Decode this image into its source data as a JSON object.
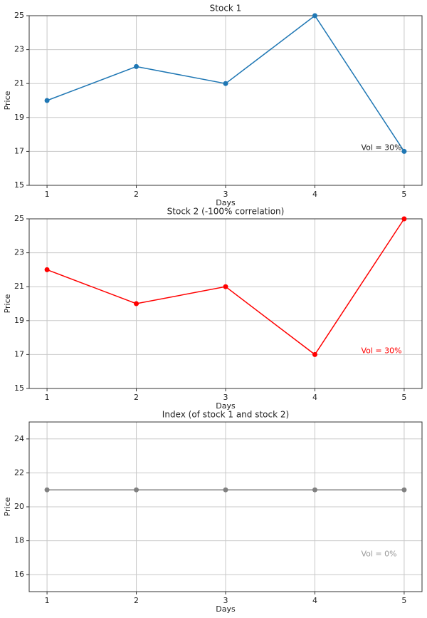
{
  "chart_data": [
    {
      "type": "line",
      "title": "Stock 1",
      "x_label": "Days",
      "y_label": "Price",
      "x": [
        1,
        2,
        3,
        4,
        5
      ],
      "xlim": [
        0.8,
        5.2
      ],
      "xticks": [
        1,
        2,
        3,
        4,
        5
      ],
      "ylim": [
        15,
        25
      ],
      "yticks": [
        15,
        17,
        19,
        21,
        23,
        25
      ],
      "grid": true,
      "series": [
        {
          "name": "Stock 1",
          "color": "#1f77b4",
          "values": [
            20,
            22,
            21,
            25,
            17
          ]
        }
      ],
      "annotation": {
        "text": "Vol = 30%",
        "color": "#222222"
      }
    },
    {
      "type": "line",
      "title": "Stock 2 (-100% correlation)",
      "x_label": "Days",
      "y_label": "Price",
      "x": [
        1,
        2,
        3,
        4,
        5
      ],
      "xlim": [
        0.8,
        5.2
      ],
      "xticks": [
        1,
        2,
        3,
        4,
        5
      ],
      "ylim": [
        15,
        25
      ],
      "yticks": [
        15,
        17,
        19,
        21,
        23,
        25
      ],
      "grid": true,
      "series": [
        {
          "name": "Stock 2",
          "color": "#ff0000",
          "values": [
            22,
            20,
            21,
            17,
            25
          ]
        }
      ],
      "annotation": {
        "text": "Vol = 30%",
        "color": "#ff0000"
      }
    },
    {
      "type": "line",
      "title": "Index (of stock 1 and stock 2)",
      "x_label": "Days",
      "y_label": "Price",
      "x": [
        1,
        2,
        3,
        4,
        5
      ],
      "xlim": [
        0.8,
        5.2
      ],
      "xticks": [
        1,
        2,
        3,
        4,
        5
      ],
      "ylim": [
        15,
        25
      ],
      "yticks": [
        16,
        18,
        20,
        22,
        24
      ],
      "grid": true,
      "series": [
        {
          "name": "Index",
          "color": "#808080",
          "values": [
            21,
            21,
            21,
            21,
            21
          ]
        }
      ],
      "annotation": {
        "text": "Vol = 0%",
        "color": "#999999"
      }
    }
  ]
}
